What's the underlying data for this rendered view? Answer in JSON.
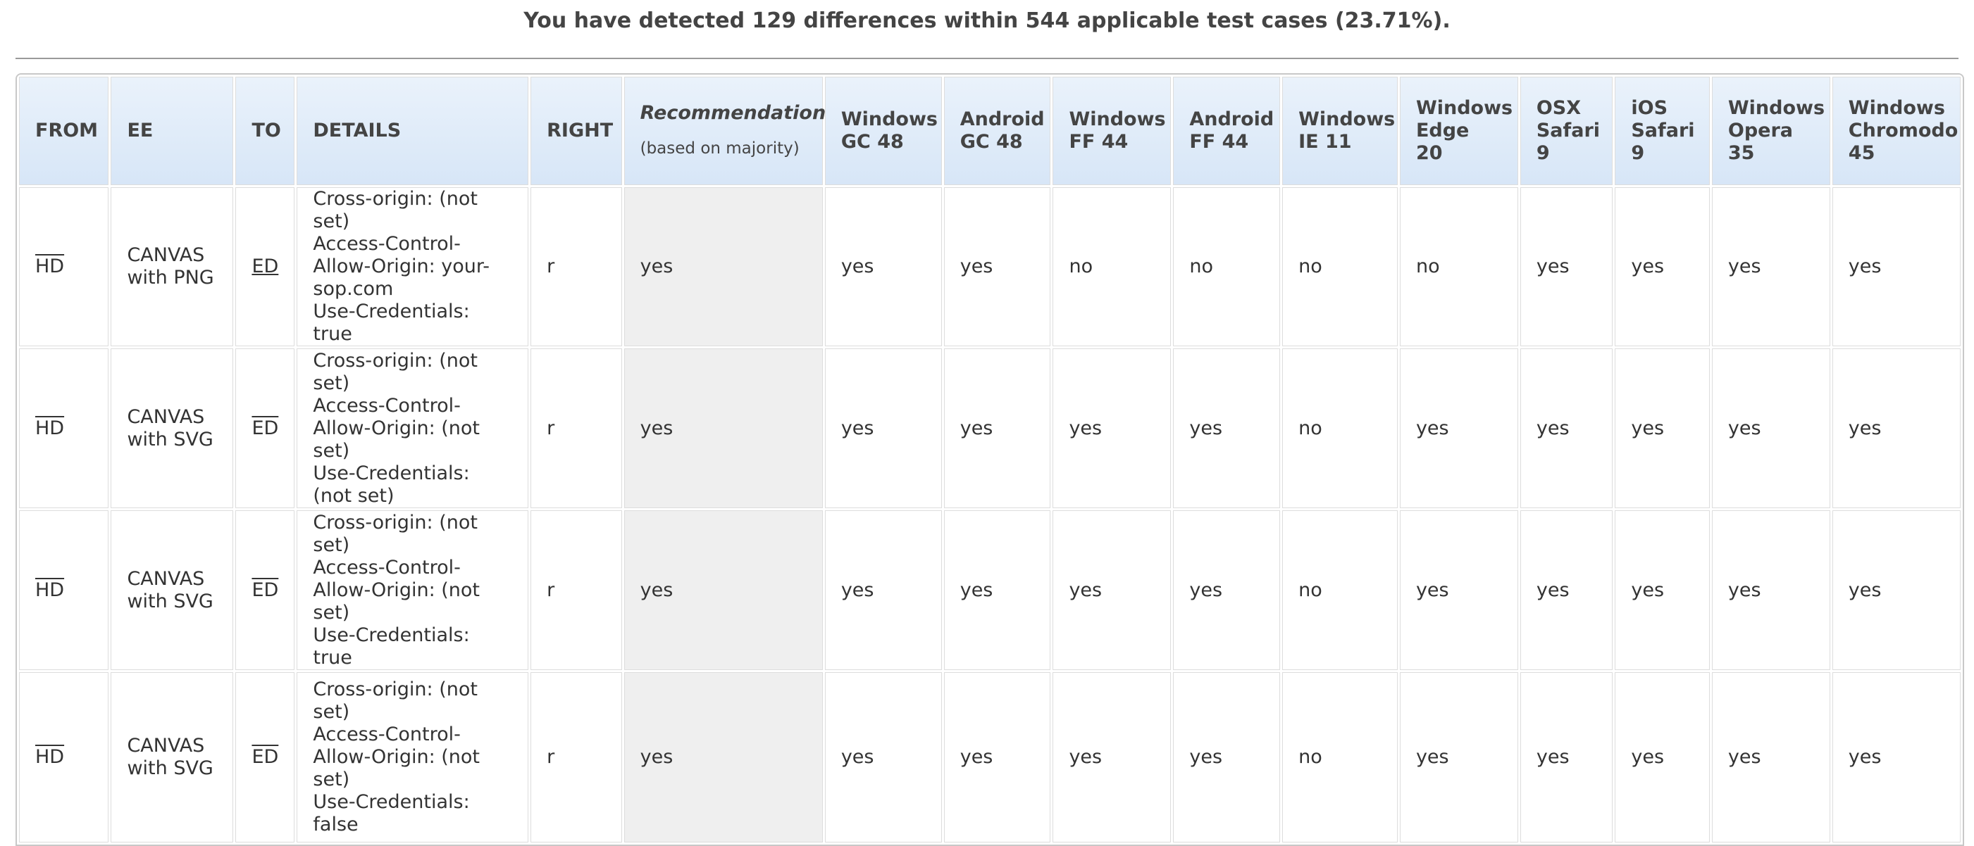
{
  "summary": "You have detected 129 differences within 544 applicable test cases (23.71%).",
  "table": {
    "headers": {
      "from": "FROM",
      "ee": "EE",
      "to": "TO",
      "details": "DETAILS",
      "right": "RIGHT",
      "recommendation": "Recommendation",
      "recommendation_sub": "(based on majority)",
      "win_gc": "Windows GC 48",
      "android_gc": "Android GC 48",
      "win_ff": "Windows FF 44",
      "android_ff": "Android FF 44",
      "win_ie": "Windows IE 11",
      "win_edge": "Windows Edge 20",
      "osx_safari": "OSX Safari 9",
      "ios_safari": "iOS Safari 9",
      "win_opera": "Windows Opera 35",
      "win_chromodo": "Windows Chromodo 45"
    },
    "rows": [
      {
        "from": "HD",
        "ee": "CANVAS with PNG",
        "to": "ED",
        "to_style": "underline",
        "details": [
          "Cross-origin: (not set)",
          "Access-Control-Allow-Origin: your-sop.com",
          "Use-Credentials: true"
        ],
        "right": "r",
        "recommendation": "yes",
        "results": [
          "yes",
          "yes",
          "no",
          "no",
          "no",
          "no",
          "yes",
          "yes",
          "yes",
          "yes"
        ]
      },
      {
        "from": "HD",
        "ee": "CANVAS with SVG",
        "to": "ED",
        "to_style": "overline",
        "details": [
          "Cross-origin: (not set)",
          "Access-Control-Allow-Origin: (not set)",
          "Use-Credentials: (not set)"
        ],
        "right": "r",
        "recommendation": "yes",
        "results": [
          "yes",
          "yes",
          "yes",
          "yes",
          "no",
          "yes",
          "yes",
          "yes",
          "yes",
          "yes"
        ]
      },
      {
        "from": "HD",
        "ee": "CANVAS with SVG",
        "to": "ED",
        "to_style": "overline",
        "details": [
          "Cross-origin: (not set)",
          "Access-Control-Allow-Origin: (not set)",
          "Use-Credentials: true"
        ],
        "right": "r",
        "recommendation": "yes",
        "results": [
          "yes",
          "yes",
          "yes",
          "yes",
          "no",
          "yes",
          "yes",
          "yes",
          "yes",
          "yes"
        ]
      },
      {
        "from": "HD",
        "ee": "CANVAS with SVG",
        "to": "ED",
        "to_style": "overline",
        "details": [
          "Cross-origin: (not set)",
          "Access-Control-Allow-Origin: (not set)",
          "Use-Credentials: false"
        ],
        "right": "r",
        "recommendation": "yes",
        "results": [
          "yes",
          "yes",
          "yes",
          "yes",
          "no",
          "yes",
          "yes",
          "yes",
          "yes",
          "yes"
        ]
      }
    ]
  }
}
